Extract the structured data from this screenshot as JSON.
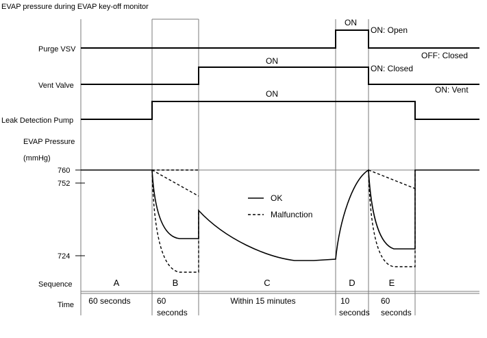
{
  "title": "EVAP pressure during EVAP key-off monitor",
  "signals": {
    "purge_vsv": "Purge VSV",
    "vent_valve": "Vent Valve",
    "leak_detection_pump": "Leak Detection Pump",
    "evap_pressure": "EVAP Pressure",
    "unit": "(mmHg)"
  },
  "state_labels": {
    "purge_on": "ON",
    "vent_on": "ON",
    "pump_on": "ON",
    "on_open": "ON: Open",
    "off_closed": "OFF: Closed",
    "on_closed": "ON: Closed",
    "on_vent": "ON: Vent"
  },
  "pressure_ticks": [
    "760",
    "752",
    "724"
  ],
  "legend": {
    "ok": "OK",
    "malfunction": "Malfunction"
  },
  "row_labels": {
    "sequence": "Sequence",
    "time": "Time"
  },
  "sequence": [
    "A",
    "B",
    "C",
    "D",
    "E"
  ],
  "time": {
    "a": "60 seconds",
    "b1": "60",
    "b2": "seconds",
    "c": "Within 15 minutes",
    "d1": "10",
    "d2": "seconds",
    "e1": "60",
    "e2": "seconds"
  }
}
